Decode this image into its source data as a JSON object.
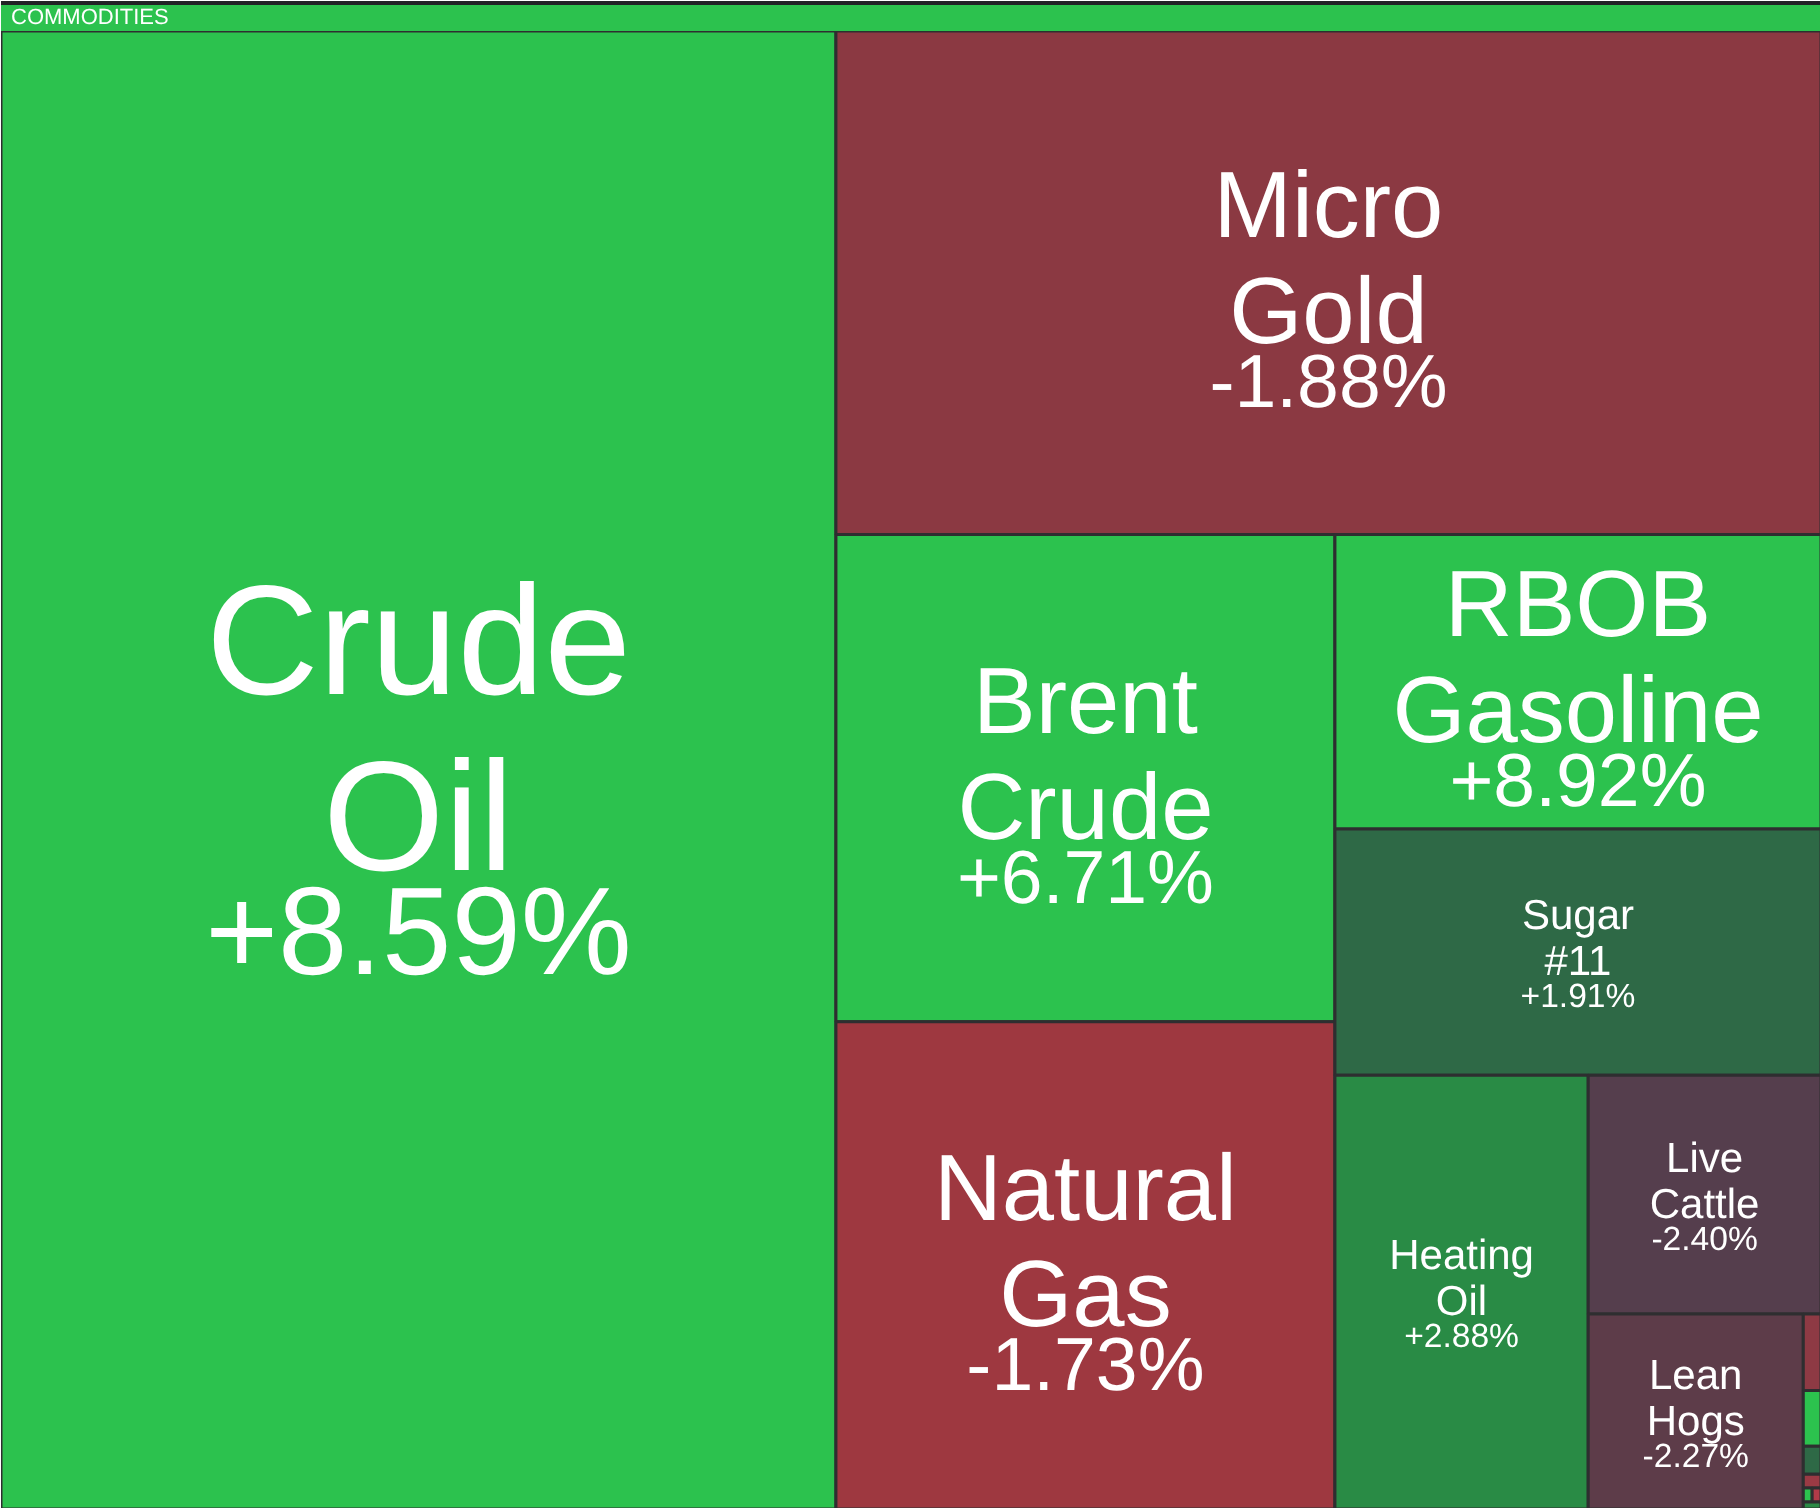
{
  "chart_data": {
    "type": "other",
    "title": "COMMODITIES",
    "categories": [
      "Crude Oil",
      "Micro Gold",
      "Brent Crude",
      "Natural Gas",
      "RBOB Gasoline",
      "Sugar #11",
      "Heating Oil",
      "Live Cattle",
      "Lean Hogs",
      null,
      null,
      null,
      null,
      null,
      null,
      null
    ],
    "values": [
      8.59,
      -1.88,
      6.71,
      -1.73,
      8.92,
      1.91,
      2.88,
      -2.4,
      -2.27,
      null,
      null,
      null,
      null,
      null,
      null,
      null
    ],
    "value_labels": [
      "+8.59%",
      "-1.88%",
      "+6.71%",
      "-1.73%",
      "+8.92%",
      "+1.91%",
      "+2.88%",
      "-2.40%",
      "-2.27%",
      null,
      null,
      null,
      null,
      null,
      null,
      null
    ],
    "colors": [
      "#2cc24e",
      "#8b3942",
      "#2cc24e",
      "#9e3840",
      "#2cc24e",
      "#2e6946",
      "#298b45",
      "#553e4d",
      "#5d3c49",
      "#8e3a44",
      "#2cc24e",
      "#2e6946",
      "#9a3a44",
      "#2cc24e",
      "#b03a48",
      "#2a8a45"
    ]
  }
}
